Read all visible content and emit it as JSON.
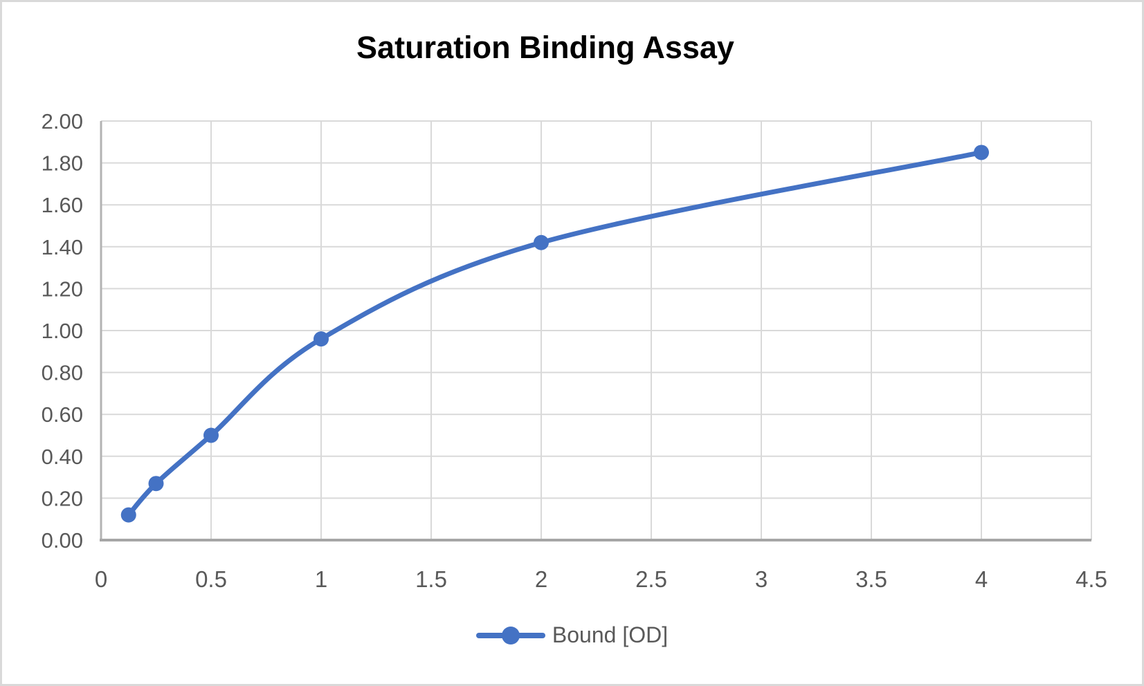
{
  "chart_data": {
    "type": "line",
    "title": "Saturation Binding Assay",
    "smooth": true,
    "grid": true,
    "legend_position": "bottom",
    "series": [
      {
        "name": "Bound [OD]",
        "color": "#4472C4",
        "x": [
          0.125,
          0.25,
          0.5,
          1,
          2,
          4
        ],
        "y": [
          0.12,
          0.27,
          0.5,
          0.96,
          1.42,
          1.85
        ]
      }
    ],
    "xlabel": "",
    "ylabel": "",
    "xlim": [
      0,
      4.5
    ],
    "ylim": [
      0,
      2.0
    ],
    "xticks": [
      0,
      0.5,
      1,
      1.5,
      2,
      2.5,
      3,
      3.5,
      4,
      4.5
    ],
    "xtick_labels": [
      "0",
      "0.5",
      "1",
      "1.5",
      "2",
      "2.5",
      "3",
      "3.5",
      "4",
      "4.5"
    ],
    "yticks": [
      0,
      0.2,
      0.4,
      0.6,
      0.8,
      1.0,
      1.2,
      1.4,
      1.6,
      1.8,
      2.0
    ],
    "ytick_labels": [
      "0.00",
      "0.20",
      "0.40",
      "0.60",
      "0.80",
      "1.00",
      "1.20",
      "1.40",
      "1.60",
      "1.80",
      "2.00"
    ],
    "colors": {
      "gridline": "#d9d9d9",
      "y_axis_line": "#b3b3b3",
      "x_axis_line": "#a6a6a6",
      "tick_label": "#595959",
      "title": "#000000",
      "legend_label": "#595959"
    }
  }
}
